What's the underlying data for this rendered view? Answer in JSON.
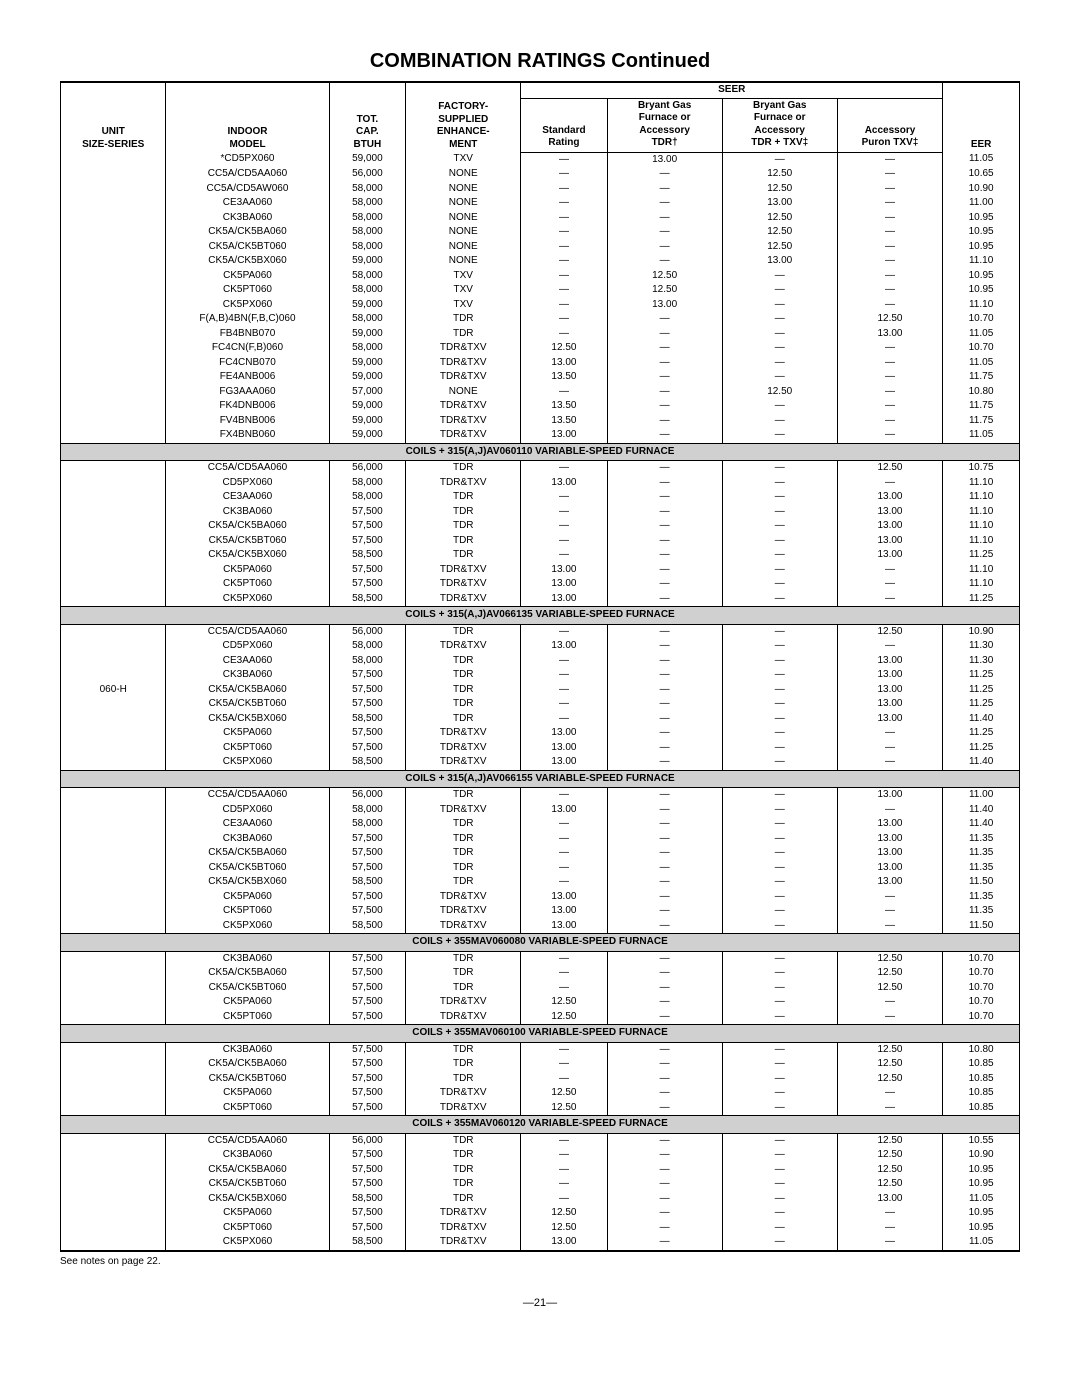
{
  "title": "COMBINATION RATINGS Continued",
  "header": {
    "unit": "UNIT\nSIZE-SERIES",
    "model": "INDOOR\nMODEL",
    "btuh": "TOT.\nCAP.\nBTUH",
    "enh": "FACTORY-\nSUPPLIED\nENHANCE-\nMENT",
    "seer": "SEER",
    "std": "Standard\nRating",
    "tdr": "Bryant Gas\nFurnace or\nAccessory\nTDR†",
    "tdrtxv": "Bryant Gas\nFurnace or\nAccessory\nTDR + TXV‡",
    "puron": "Accessory\nPuron TXV‡",
    "eer": "EER"
  },
  "unit_label": "060-H",
  "footnote": "See notes on page 22.",
  "page_num": "—21—",
  "sections": [
    {
      "title": null,
      "rows": [
        {
          "model": "*CD5PX060",
          "btuh": "59,000",
          "enh": "TXV",
          "std": "—",
          "tdr": "13.00",
          "tdrtxv": "—",
          "puron": "—",
          "eer": "11.05"
        },
        {
          "model": "CC5A/CD5AA060",
          "btuh": "56,000",
          "enh": "NONE",
          "std": "—",
          "tdr": "—",
          "tdrtxv": "12.50",
          "puron": "—",
          "eer": "10.65"
        },
        {
          "model": "CC5A/CD5AW060",
          "btuh": "58,000",
          "enh": "NONE",
          "std": "—",
          "tdr": "—",
          "tdrtxv": "12.50",
          "puron": "—",
          "eer": "10.90"
        },
        {
          "model": "CE3AA060",
          "btuh": "58,000",
          "enh": "NONE",
          "std": "—",
          "tdr": "—",
          "tdrtxv": "13.00",
          "puron": "—",
          "eer": "11.00"
        },
        {
          "model": "CK3BA060",
          "btuh": "58,000",
          "enh": "NONE",
          "std": "—",
          "tdr": "—",
          "tdrtxv": "12.50",
          "puron": "—",
          "eer": "10.95"
        },
        {
          "model": "CK5A/CK5BA060",
          "btuh": "58,000",
          "enh": "NONE",
          "std": "—",
          "tdr": "—",
          "tdrtxv": "12.50",
          "puron": "—",
          "eer": "10.95"
        },
        {
          "model": "CK5A/CK5BT060",
          "btuh": "58,000",
          "enh": "NONE",
          "std": "—",
          "tdr": "—",
          "tdrtxv": "12.50",
          "puron": "—",
          "eer": "10.95"
        },
        {
          "model": "CK5A/CK5BX060",
          "btuh": "59,000",
          "enh": "NONE",
          "std": "—",
          "tdr": "—",
          "tdrtxv": "13.00",
          "puron": "—",
          "eer": "11.10"
        },
        {
          "model": "CK5PA060",
          "btuh": "58,000",
          "enh": "TXV",
          "std": "—",
          "tdr": "12.50",
          "tdrtxv": "—",
          "puron": "—",
          "eer": "10.95"
        },
        {
          "model": "CK5PT060",
          "btuh": "58,000",
          "enh": "TXV",
          "std": "—",
          "tdr": "12.50",
          "tdrtxv": "—",
          "puron": "—",
          "eer": "10.95"
        },
        {
          "model": "CK5PX060",
          "btuh": "59,000",
          "enh": "TXV",
          "std": "—",
          "tdr": "13.00",
          "tdrtxv": "—",
          "puron": "—",
          "eer": "11.10"
        },
        {
          "model": "F(A,B)4BN(F,B,C)060",
          "btuh": "58,000",
          "enh": "TDR",
          "std": "—",
          "tdr": "—",
          "tdrtxv": "—",
          "puron": "12.50",
          "eer": "10.70"
        },
        {
          "model": "FB4BNB070",
          "btuh": "59,000",
          "enh": "TDR",
          "std": "—",
          "tdr": "—",
          "tdrtxv": "—",
          "puron": "13.00",
          "eer": "11.05"
        },
        {
          "model": "FC4CN(F,B)060",
          "btuh": "58,000",
          "enh": "TDR&TXV",
          "std": "12.50",
          "tdr": "—",
          "tdrtxv": "—",
          "puron": "—",
          "eer": "10.70"
        },
        {
          "model": "FC4CNB070",
          "btuh": "59,000",
          "enh": "TDR&TXV",
          "std": "13.00",
          "tdr": "—",
          "tdrtxv": "—",
          "puron": "—",
          "eer": "11.05"
        },
        {
          "model": "FE4ANB006",
          "btuh": "59,000",
          "enh": "TDR&TXV",
          "std": "13.50",
          "tdr": "—",
          "tdrtxv": "—",
          "puron": "—",
          "eer": "11.75"
        },
        {
          "model": "FG3AAA060",
          "btuh": "57,000",
          "enh": "NONE",
          "std": "—",
          "tdr": "—",
          "tdrtxv": "12.50",
          "puron": "—",
          "eer": "10.80"
        },
        {
          "model": "FK4DNB006",
          "btuh": "59,000",
          "enh": "TDR&TXV",
          "std": "13.50",
          "tdr": "—",
          "tdrtxv": "—",
          "puron": "—",
          "eer": "11.75"
        },
        {
          "model": "FV4BNB006",
          "btuh": "59,000",
          "enh": "TDR&TXV",
          "std": "13.50",
          "tdr": "—",
          "tdrtxv": "—",
          "puron": "—",
          "eer": "11.75"
        },
        {
          "model": "FX4BNB060",
          "btuh": "59,000",
          "enh": "TDR&TXV",
          "std": "13.00",
          "tdr": "—",
          "tdrtxv": "—",
          "puron": "—",
          "eer": "11.05"
        }
      ]
    },
    {
      "title": "COILS + 315(A,J)AV060110 VARIABLE-SPEED FURNACE",
      "rows": [
        {
          "model": "CC5A/CD5AA060",
          "btuh": "56,000",
          "enh": "TDR",
          "std": "—",
          "tdr": "—",
          "tdrtxv": "—",
          "puron": "12.50",
          "eer": "10.75"
        },
        {
          "model": "CD5PX060",
          "btuh": "58,000",
          "enh": "TDR&TXV",
          "std": "13.00",
          "tdr": "—",
          "tdrtxv": "—",
          "puron": "—",
          "eer": "11.10"
        },
        {
          "model": "CE3AA060",
          "btuh": "58,000",
          "enh": "TDR",
          "std": "—",
          "tdr": "—",
          "tdrtxv": "—",
          "puron": "13.00",
          "eer": "11.10"
        },
        {
          "model": "CK3BA060",
          "btuh": "57,500",
          "enh": "TDR",
          "std": "—",
          "tdr": "—",
          "tdrtxv": "—",
          "puron": "13.00",
          "eer": "11.10"
        },
        {
          "model": "CK5A/CK5BA060",
          "btuh": "57,500",
          "enh": "TDR",
          "std": "—",
          "tdr": "—",
          "tdrtxv": "—",
          "puron": "13.00",
          "eer": "11.10"
        },
        {
          "model": "CK5A/CK5BT060",
          "btuh": "57,500",
          "enh": "TDR",
          "std": "—",
          "tdr": "—",
          "tdrtxv": "—",
          "puron": "13.00",
          "eer": "11.10"
        },
        {
          "model": "CK5A/CK5BX060",
          "btuh": "58,500",
          "enh": "TDR",
          "std": "—",
          "tdr": "—",
          "tdrtxv": "—",
          "puron": "13.00",
          "eer": "11.25"
        },
        {
          "model": "CK5PA060",
          "btuh": "57,500",
          "enh": "TDR&TXV",
          "std": "13.00",
          "tdr": "—",
          "tdrtxv": "—",
          "puron": "—",
          "eer": "11.10"
        },
        {
          "model": "CK5PT060",
          "btuh": "57,500",
          "enh": "TDR&TXV",
          "std": "13.00",
          "tdr": "—",
          "tdrtxv": "—",
          "puron": "—",
          "eer": "11.10"
        },
        {
          "model": "CK5PX060",
          "btuh": "58,500",
          "enh": "TDR&TXV",
          "std": "13.00",
          "tdr": "—",
          "tdrtxv": "—",
          "puron": "—",
          "eer": "11.25"
        }
      ]
    },
    {
      "title": "COILS + 315(A,J)AV066135 VARIABLE-SPEED FURNACE",
      "rows": [
        {
          "model": "CC5A/CD5AA060",
          "btuh": "56,000",
          "enh": "TDR",
          "std": "—",
          "tdr": "—",
          "tdrtxv": "—",
          "puron": "12.50",
          "eer": "10.90"
        },
        {
          "model": "CD5PX060",
          "btuh": "58,000",
          "enh": "TDR&TXV",
          "std": "13.00",
          "tdr": "—",
          "tdrtxv": "—",
          "puron": "—",
          "eer": "11.30"
        },
        {
          "model": "CE3AA060",
          "btuh": "58,000",
          "enh": "TDR",
          "std": "—",
          "tdr": "—",
          "tdrtxv": "—",
          "puron": "13.00",
          "eer": "11.30"
        },
        {
          "model": "CK3BA060",
          "btuh": "57,500",
          "enh": "TDR",
          "std": "—",
          "tdr": "—",
          "tdrtxv": "—",
          "puron": "13.00",
          "eer": "11.25"
        },
        {
          "model": "CK5A/CK5BA060",
          "btuh": "57,500",
          "enh": "TDR",
          "std": "—",
          "tdr": "—",
          "tdrtxv": "—",
          "puron": "13.00",
          "eer": "11.25"
        },
        {
          "model": "CK5A/CK5BT060",
          "btuh": "57,500",
          "enh": "TDR",
          "std": "—",
          "tdr": "—",
          "tdrtxv": "—",
          "puron": "13.00",
          "eer": "11.25"
        },
        {
          "model": "CK5A/CK5BX060",
          "btuh": "58,500",
          "enh": "TDR",
          "std": "—",
          "tdr": "—",
          "tdrtxv": "—",
          "puron": "13.00",
          "eer": "11.40"
        },
        {
          "model": "CK5PA060",
          "btuh": "57,500",
          "enh": "TDR&TXV",
          "std": "13.00",
          "tdr": "—",
          "tdrtxv": "—",
          "puron": "—",
          "eer": "11.25"
        },
        {
          "model": "CK5PT060",
          "btuh": "57,500",
          "enh": "TDR&TXV",
          "std": "13.00",
          "tdr": "—",
          "tdrtxv": "—",
          "puron": "—",
          "eer": "11.25"
        },
        {
          "model": "CK5PX060",
          "btuh": "58,500",
          "enh": "TDR&TXV",
          "std": "13.00",
          "tdr": "—",
          "tdrtxv": "—",
          "puron": "—",
          "eer": "11.40"
        }
      ]
    },
    {
      "title": "COILS + 315(A,J)AV066155 VARIABLE-SPEED FURNACE",
      "rows": [
        {
          "model": "CC5A/CD5AA060",
          "btuh": "56,000",
          "enh": "TDR",
          "std": "—",
          "tdr": "—",
          "tdrtxv": "—",
          "puron": "13.00",
          "eer": "11.00"
        },
        {
          "model": "CD5PX060",
          "btuh": "58,000",
          "enh": "TDR&TXV",
          "std": "13.00",
          "tdr": "—",
          "tdrtxv": "—",
          "puron": "—",
          "eer": "11.40"
        },
        {
          "model": "CE3AA060",
          "btuh": "58,000",
          "enh": "TDR",
          "std": "—",
          "tdr": "—",
          "tdrtxv": "—",
          "puron": "13.00",
          "eer": "11.40"
        },
        {
          "model": "CK3BA060",
          "btuh": "57,500",
          "enh": "TDR",
          "std": "—",
          "tdr": "—",
          "tdrtxv": "—",
          "puron": "13.00",
          "eer": "11.35"
        },
        {
          "model": "CK5A/CK5BA060",
          "btuh": "57,500",
          "enh": "TDR",
          "std": "—",
          "tdr": "—",
          "tdrtxv": "—",
          "puron": "13.00",
          "eer": "11.35"
        },
        {
          "model": "CK5A/CK5BT060",
          "btuh": "57,500",
          "enh": "TDR",
          "std": "—",
          "tdr": "—",
          "tdrtxv": "—",
          "puron": "13.00",
          "eer": "11.35"
        },
        {
          "model": "CK5A/CK5BX060",
          "btuh": "58,500",
          "enh": "TDR",
          "std": "—",
          "tdr": "—",
          "tdrtxv": "—",
          "puron": "13.00",
          "eer": "11.50"
        },
        {
          "model": "CK5PA060",
          "btuh": "57,500",
          "enh": "TDR&TXV",
          "std": "13.00",
          "tdr": "—",
          "tdrtxv": "—",
          "puron": "—",
          "eer": "11.35"
        },
        {
          "model": "CK5PT060",
          "btuh": "57,500",
          "enh": "TDR&TXV",
          "std": "13.00",
          "tdr": "—",
          "tdrtxv": "—",
          "puron": "—",
          "eer": "11.35"
        },
        {
          "model": "CK5PX060",
          "btuh": "58,500",
          "enh": "TDR&TXV",
          "std": "13.00",
          "tdr": "—",
          "tdrtxv": "—",
          "puron": "—",
          "eer": "11.50"
        }
      ]
    },
    {
      "title": "COILS + 355MAV060080 VARIABLE-SPEED FURNACE",
      "rows": [
        {
          "model": "CK3BA060",
          "btuh": "57,500",
          "enh": "TDR",
          "std": "—",
          "tdr": "—",
          "tdrtxv": "—",
          "puron": "12.50",
          "eer": "10.70"
        },
        {
          "model": "CK5A/CK5BA060",
          "btuh": "57,500",
          "enh": "TDR",
          "std": "—",
          "tdr": "—",
          "tdrtxv": "—",
          "puron": "12.50",
          "eer": "10.70"
        },
        {
          "model": "CK5A/CK5BT060",
          "btuh": "57,500",
          "enh": "TDR",
          "std": "—",
          "tdr": "—",
          "tdrtxv": "—",
          "puron": "12.50",
          "eer": "10.70"
        },
        {
          "model": "CK5PA060",
          "btuh": "57,500",
          "enh": "TDR&TXV",
          "std": "12.50",
          "tdr": "—",
          "tdrtxv": "—",
          "puron": "—",
          "eer": "10.70"
        },
        {
          "model": "CK5PT060",
          "btuh": "57,500",
          "enh": "TDR&TXV",
          "std": "12.50",
          "tdr": "—",
          "tdrtxv": "—",
          "puron": "—",
          "eer": "10.70"
        }
      ]
    },
    {
      "title": "COILS + 355MAV060100 VARIABLE-SPEED FURNACE",
      "rows": [
        {
          "model": "CK3BA060",
          "btuh": "57,500",
          "enh": "TDR",
          "std": "—",
          "tdr": "—",
          "tdrtxv": "—",
          "puron": "12.50",
          "eer": "10.80"
        },
        {
          "model": "CK5A/CK5BA060",
          "btuh": "57,500",
          "enh": "TDR",
          "std": "—",
          "tdr": "—",
          "tdrtxv": "—",
          "puron": "12.50",
          "eer": "10.85"
        },
        {
          "model": "CK5A/CK5BT060",
          "btuh": "57,500",
          "enh": "TDR",
          "std": "—",
          "tdr": "—",
          "tdrtxv": "—",
          "puron": "12.50",
          "eer": "10.85"
        },
        {
          "model": "CK5PA060",
          "btuh": "57,500",
          "enh": "TDR&TXV",
          "std": "12.50",
          "tdr": "—",
          "tdrtxv": "—",
          "puron": "—",
          "eer": "10.85"
        },
        {
          "model": "CK5PT060",
          "btuh": "57,500",
          "enh": "TDR&TXV",
          "std": "12.50",
          "tdr": "—",
          "tdrtxv": "—",
          "puron": "—",
          "eer": "10.85"
        }
      ]
    },
    {
      "title": "COILS + 355MAV060120 VARIABLE-SPEED FURNACE",
      "rows": [
        {
          "model": "CC5A/CD5AA060",
          "btuh": "56,000",
          "enh": "TDR",
          "std": "—",
          "tdr": "—",
          "tdrtxv": "—",
          "puron": "12.50",
          "eer": "10.55"
        },
        {
          "model": "CK3BA060",
          "btuh": "57,500",
          "enh": "TDR",
          "std": "—",
          "tdr": "—",
          "tdrtxv": "—",
          "puron": "12.50",
          "eer": "10.90"
        },
        {
          "model": "CK5A/CK5BA060",
          "btuh": "57,500",
          "enh": "TDR",
          "std": "—",
          "tdr": "—",
          "tdrtxv": "—",
          "puron": "12.50",
          "eer": "10.95"
        },
        {
          "model": "CK5A/CK5BT060",
          "btuh": "57,500",
          "enh": "TDR",
          "std": "—",
          "tdr": "—",
          "tdrtxv": "—",
          "puron": "12.50",
          "eer": "10.95"
        },
        {
          "model": "CK5A/CK5BX060",
          "btuh": "58,500",
          "enh": "TDR",
          "std": "—",
          "tdr": "—",
          "tdrtxv": "—",
          "puron": "13.00",
          "eer": "11.05"
        },
        {
          "model": "CK5PA060",
          "btuh": "57,500",
          "enh": "TDR&TXV",
          "std": "12.50",
          "tdr": "—",
          "tdrtxv": "—",
          "puron": "—",
          "eer": "10.95"
        },
        {
          "model": "CK5PT060",
          "btuh": "57,500",
          "enh": "TDR&TXV",
          "std": "12.50",
          "tdr": "—",
          "tdrtxv": "—",
          "puron": "—",
          "eer": "10.95"
        },
        {
          "model": "CK5PX060",
          "btuh": "58,500",
          "enh": "TDR&TXV",
          "std": "13.00",
          "tdr": "—",
          "tdrtxv": "—",
          "puron": "—",
          "eer": "11.05"
        }
      ]
    }
  ]
}
